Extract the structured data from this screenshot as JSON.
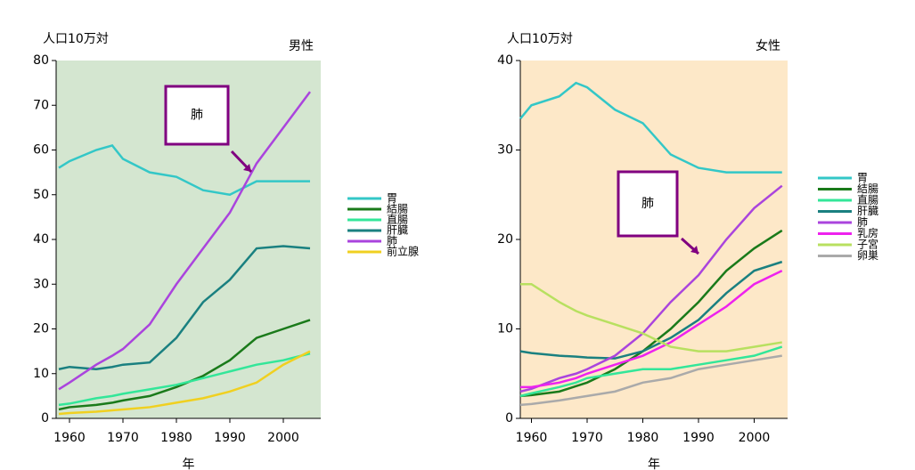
{
  "chart_data": [
    {
      "type": "line",
      "title": "男性",
      "ylabel": "人口10万対",
      "xlabel": "年",
      "annotation": "肺",
      "background": "#d4e6d0",
      "x": [
        1958,
        1960,
        1965,
        1968,
        1970,
        1975,
        1980,
        1985,
        1990,
        1995,
        2000,
        2005
      ],
      "xlim": [
        1957.5,
        2007
      ],
      "xticks": [
        1960,
        1970,
        1980,
        1990,
        2000
      ],
      "ylim": [
        0,
        80
      ],
      "yticks": [
        0,
        10,
        20,
        30,
        40,
        50,
        60,
        70,
        80
      ],
      "series": [
        {
          "name": "胃",
          "color": "#33c7c7",
          "values": [
            56,
            57.5,
            60,
            61,
            58,
            55,
            54,
            51,
            50,
            53,
            53,
            53
          ]
        },
        {
          "name": "結腸",
          "color": "#1a7a1a",
          "values": [
            2,
            2.5,
            3,
            3.5,
            4,
            5,
            7,
            9.5,
            13,
            18,
            20,
            22
          ]
        },
        {
          "name": "直腸",
          "color": "#33e699",
          "values": [
            3,
            3.3,
            4.5,
            5,
            5.5,
            6.5,
            7.5,
            9,
            10.5,
            12,
            13,
            14.5
          ]
        },
        {
          "name": "肝臓",
          "color": "#1a8080",
          "values": [
            11,
            11.5,
            11,
            11.5,
            12,
            12.5,
            18,
            26,
            31,
            38,
            38.5,
            38
          ]
        },
        {
          "name": "肺",
          "color": "#aa44dd",
          "values": [
            6.5,
            8,
            12,
            14,
            15.5,
            21,
            30,
            38,
            46,
            57,
            65,
            73
          ]
        },
        {
          "name": "前立腺",
          "color": "#f0d020",
          "values": [
            1,
            1.2,
            1.5,
            1.8,
            2,
            2.5,
            3.5,
            4.5,
            6,
            8,
            12,
            15
          ]
        }
      ]
    },
    {
      "type": "line",
      "title": "女性",
      "ylabel": "人口10万対",
      "xlabel": "年",
      "annotation": "肺",
      "background": "#fde8c8",
      "x": [
        1958,
        1960,
        1965,
        1968,
        1970,
        1975,
        1980,
        1985,
        1990,
        1995,
        2000,
        2005
      ],
      "xlim": [
        1958,
        2006
      ],
      "xticks": [
        1960,
        1970,
        1980,
        1990,
        2000
      ],
      "ylim": [
        0,
        40
      ],
      "yticks": [
        0,
        10,
        20,
        30,
        40
      ],
      "series": [
        {
          "name": "胃",
          "color": "#33c7c7",
          "values": [
            33.5,
            35,
            36,
            37.5,
            37,
            34.5,
            33,
            29.5,
            28,
            27.5,
            27.5,
            27.5
          ]
        },
        {
          "name": "結腸",
          "color": "#1a7a1a",
          "values": [
            2.5,
            2.6,
            3,
            3.6,
            4,
            5.5,
            7.5,
            10,
            13,
            16.5,
            19,
            21
          ]
        },
        {
          "name": "直腸",
          "color": "#33e699",
          "values": [
            2.5,
            2.8,
            3.5,
            4,
            4.5,
            5,
            5.5,
            5.5,
            6,
            6.5,
            7,
            8
          ]
        },
        {
          "name": "肝臓",
          "color": "#1a8080",
          "values": [
            7.5,
            7.3,
            7,
            6.9,
            6.8,
            6.7,
            7.5,
            9,
            11,
            14,
            16.5,
            17.5
          ]
        },
        {
          "name": "肺",
          "color": "#aa44dd",
          "values": [
            3,
            3.3,
            4.5,
            5,
            5.5,
            7,
            9.5,
            13,
            16,
            20,
            23.5,
            26
          ]
        },
        {
          "name": "乳房",
          "color": "#ee22ee",
          "values": [
            3.5,
            3.5,
            4,
            4.5,
            5,
            6,
            7,
            8.5,
            10.5,
            12.5,
            15,
            16.5
          ]
        },
        {
          "name": "子宮",
          "color": "#b8e060",
          "values": [
            15,
            15,
            13,
            12,
            11.5,
            10.5,
            9.5,
            8,
            7.5,
            7.5,
            8,
            8.5
          ]
        },
        {
          "name": "卵巣",
          "color": "#aaaaaa",
          "values": [
            1.5,
            1.6,
            2,
            2.3,
            2.5,
            3,
            4,
            4.5,
            5.5,
            6,
            6.5,
            7
          ]
        }
      ]
    }
  ]
}
